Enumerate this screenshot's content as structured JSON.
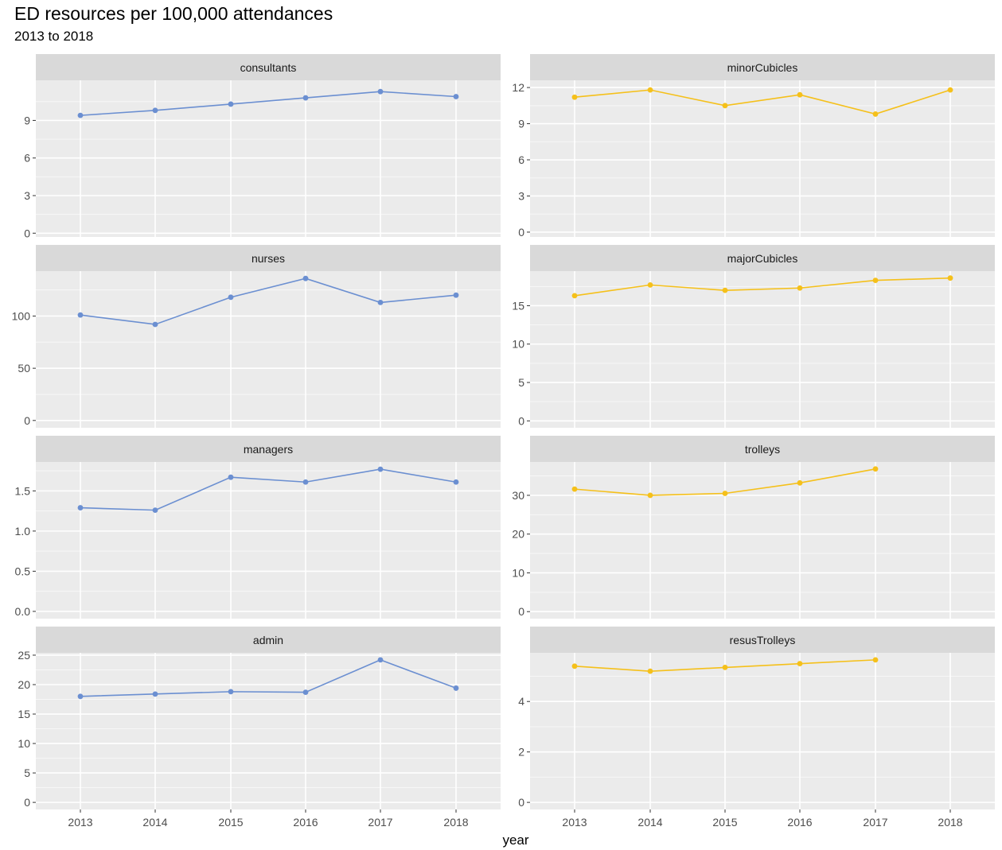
{
  "chart_data": {
    "type": "line",
    "title": "ED resources per 100,000 attendances",
    "subtitle": "2013 to 2018",
    "xlabel": "year",
    "x": [
      2013,
      2014,
      2015,
      2016,
      2017,
      2018
    ],
    "x_tick_labels": [
      "2013",
      "2014",
      "2015",
      "2016",
      "2017",
      "2018"
    ],
    "layout": "facet grid, 4 rows x 2 columns, free y scales, shared x axis",
    "grid": true,
    "colors": {
      "left_series": "#6b8fd1",
      "right_series": "#f5c01a",
      "panel_bg": "#ebebeb",
      "strip_bg": "#d9d9d9"
    },
    "panels": [
      {
        "strip": "consultants",
        "column": "left",
        "color": "#6b8fd1",
        "values": [
          9.4,
          9.8,
          10.3,
          10.8,
          11.3,
          10.9
        ],
        "ylim": [
          -0.3,
          12.2
        ],
        "yticks": [
          0,
          3,
          6,
          9
        ],
        "ytick_labels": [
          "0",
          "3",
          "6",
          "9"
        ]
      },
      {
        "strip": "minorCubicles",
        "column": "right",
        "color": "#f5c01a",
        "values": [
          11.2,
          11.8,
          10.5,
          11.4,
          9.8,
          11.8
        ],
        "ylim": [
          -0.4,
          12.6
        ],
        "yticks": [
          0,
          3,
          6,
          9,
          12
        ],
        "ytick_labels": [
          "0",
          "3",
          "6",
          "9",
          "12"
        ]
      },
      {
        "strip": "nurses",
        "column": "left",
        "color": "#6b8fd1",
        "values": [
          101,
          92,
          118,
          136,
          113,
          120
        ],
        "ylim": [
          -7,
          143
        ],
        "yticks": [
          0,
          50,
          100
        ],
        "ytick_labels": [
          "0",
          "50",
          "100"
        ]
      },
      {
        "strip": "majorCubicles",
        "column": "right",
        "color": "#f5c01a",
        "values": [
          16.3,
          17.7,
          17.0,
          17.3,
          18.3,
          18.6
        ],
        "ylim": [
          -0.9,
          19.5
        ],
        "yticks": [
          0,
          5,
          10,
          15
        ],
        "ytick_labels": [
          "0",
          "5",
          "10",
          "15"
        ]
      },
      {
        "strip": "managers",
        "column": "left",
        "color": "#6b8fd1",
        "values": [
          1.29,
          1.26,
          1.67,
          1.61,
          1.77,
          1.61
        ],
        "ylim": [
          -0.09,
          1.86
        ],
        "yticks": [
          0.0,
          0.5,
          1.0,
          1.5
        ],
        "ytick_labels": [
          "0.0",
          "0.5",
          "1.0",
          "1.5"
        ]
      },
      {
        "strip": "trolleys",
        "column": "right",
        "color": "#f5c01a",
        "values": [
          31.6,
          30.0,
          30.5,
          33.2,
          36.8,
          null
        ],
        "ylim": [
          -1.8,
          38.6
        ],
        "yticks": [
          0,
          10,
          20,
          30
        ],
        "ytick_labels": [
          "0",
          "10",
          "20",
          "30"
        ]
      },
      {
        "strip": "admin",
        "column": "left",
        "color": "#6b8fd1",
        "values": [
          18.0,
          18.4,
          18.8,
          18.7,
          24.2,
          19.4
        ],
        "ylim": [
          -1.2,
          25.4
        ],
        "yticks": [
          0,
          5,
          10,
          15,
          20,
          25
        ],
        "ytick_labels": [
          "0",
          "5",
          "10",
          "15",
          "20",
          "25"
        ]
      },
      {
        "strip": "resusTrolleys",
        "column": "right",
        "color": "#f5c01a",
        "values": [
          5.4,
          5.2,
          5.35,
          5.5,
          5.65,
          null
        ],
        "ylim": [
          -0.28,
          5.93
        ],
        "yticks": [
          0,
          2,
          4
        ],
        "ytick_labels": [
          "0",
          "2",
          "4"
        ]
      }
    ]
  }
}
